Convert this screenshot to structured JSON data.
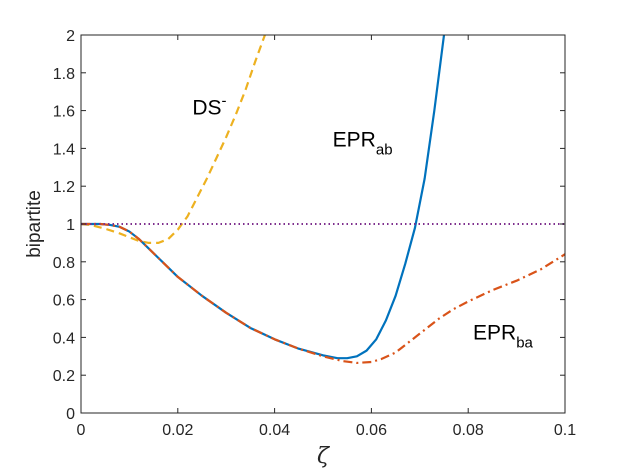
{
  "chart_data": {
    "type": "line",
    "xlabel": "ζ",
    "ylabel": "bipartite",
    "xlim": [
      0,
      0.1
    ],
    "ylim": [
      0,
      2
    ],
    "xticks": [
      0,
      0.02,
      0.04,
      0.06,
      0.08,
      0.1
    ],
    "xtick_labels": [
      "0",
      "0.02",
      "0.04",
      "0.06",
      "0.08",
      "0.1"
    ],
    "yticks": [
      0,
      0.2,
      0.4,
      0.6,
      0.8,
      1,
      1.2,
      1.4,
      1.6,
      1.8,
      2
    ],
    "ytick_labels": [
      "0",
      "0.2",
      "0.4",
      "0.6",
      "0.8",
      "1",
      "1.2",
      "1.4",
      "1.6",
      "1.8",
      "2"
    ],
    "grid": false,
    "series": [
      {
        "name": "DS-",
        "style": "dashed",
        "color": "#EDB120",
        "x": [
          0,
          0.002,
          0.005,
          0.008,
          0.01,
          0.012,
          0.014,
          0.016,
          0.018,
          0.02,
          0.022,
          0.024,
          0.026,
          0.028,
          0.03,
          0.032,
          0.034,
          0.036,
          0.038
        ],
        "y": [
          1.0,
          0.995,
          0.975,
          0.95,
          0.93,
          0.91,
          0.9,
          0.9,
          0.92,
          0.97,
          1.04,
          1.14,
          1.24,
          1.35,
          1.46,
          1.58,
          1.71,
          1.86,
          2.0
        ]
      },
      {
        "name": "EPR_ab",
        "style": "solid",
        "color": "#0072BD",
        "x": [
          0,
          0.004,
          0.006,
          0.008,
          0.01,
          0.012,
          0.014,
          0.016,
          0.018,
          0.02,
          0.025,
          0.03,
          0.035,
          0.04,
          0.045,
          0.05,
          0.053,
          0.055,
          0.057,
          0.059,
          0.061,
          0.063,
          0.065,
          0.067,
          0.069,
          0.071,
          0.073,
          0.075
        ],
        "y": [
          1.0,
          1.0,
          0.995,
          0.985,
          0.96,
          0.92,
          0.87,
          0.82,
          0.77,
          0.72,
          0.62,
          0.53,
          0.45,
          0.39,
          0.34,
          0.305,
          0.29,
          0.29,
          0.3,
          0.33,
          0.39,
          0.49,
          0.62,
          0.79,
          0.98,
          1.24,
          1.6,
          2.0
        ]
      },
      {
        "name": "EPR_ba",
        "style": "dashdot",
        "color": "#D95319",
        "x": [
          0,
          0.004,
          0.006,
          0.008,
          0.01,
          0.012,
          0.014,
          0.016,
          0.018,
          0.02,
          0.025,
          0.03,
          0.035,
          0.04,
          0.045,
          0.05,
          0.054,
          0.057,
          0.06,
          0.062,
          0.065,
          0.068,
          0.071,
          0.074,
          0.077,
          0.08,
          0.085,
          0.09,
          0.095,
          0.1
        ],
        "y": [
          1.0,
          1.0,
          0.995,
          0.985,
          0.96,
          0.92,
          0.87,
          0.82,
          0.77,
          0.72,
          0.62,
          0.53,
          0.45,
          0.39,
          0.34,
          0.3,
          0.275,
          0.265,
          0.27,
          0.285,
          0.32,
          0.38,
          0.44,
          0.5,
          0.55,
          0.59,
          0.65,
          0.7,
          0.76,
          0.84
        ]
      },
      {
        "name": "",
        "style": "dotted",
        "color": "#7E2F8E",
        "x": [
          0,
          0.1
        ],
        "y": [
          1,
          1
        ]
      }
    ],
    "annotations": [
      {
        "text": "DS",
        "sup": "-",
        "x": 0.023,
        "y": 1.58
      },
      {
        "text": "EPR",
        "sub": "ab",
        "x": 0.052,
        "y": 1.41
      },
      {
        "text": "EPR",
        "sub": "ba",
        "x": 0.081,
        "y": 0.39
      }
    ]
  }
}
